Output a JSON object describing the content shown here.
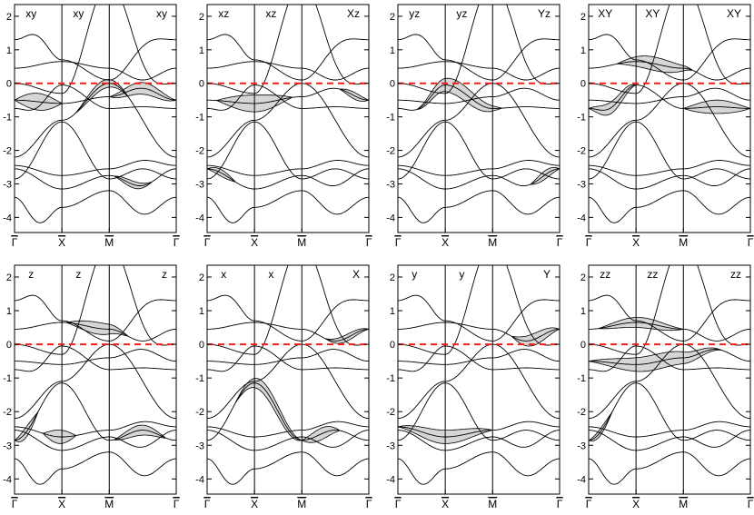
{
  "figure": {
    "y_ticks": [
      -4,
      -3,
      -2,
      -1,
      0,
      1,
      2
    ],
    "y_tick_labels": [
      "-4",
      "-3",
      "-2",
      "-1",
      "0",
      "1",
      "2"
    ],
    "ylim": [
      -4.45,
      2.35
    ],
    "x_ticks": [
      0,
      1,
      2,
      3.414
    ],
    "x_tick_labels": [
      "Γ",
      "X",
      "M",
      "Γ"
    ],
    "fermi_level": 0,
    "fermi_line_color": "#e8231e",
    "fatband_fill": "#d6d6d6",
    "line_color": "#000000"
  },
  "chart_data": [
    {
      "type": "line",
      "panel_labels": [
        "xy",
        "xy",
        "xy"
      ],
      "highlight": [
        {
          "band": 3,
          "x": [
            0,
            1.0
          ],
          "w": 0.5
        },
        {
          "band": 3,
          "x": [
            2.0,
            3.414
          ],
          "w": 0.35
        },
        {
          "band": 5,
          "x": [
            1.3,
            2.4
          ],
          "w": 0.25
        },
        {
          "band": 7,
          "x": [
            2.1,
            2.9
          ],
          "w": 0.2
        }
      ]
    },
    {
      "type": "line",
      "panel_labels": [
        "xz",
        "xz",
        "Xz"
      ],
      "highlight": [
        {
          "band": 3,
          "x": [
            0.2,
            1.8
          ],
          "w": 0.5
        },
        {
          "band": 7,
          "x": [
            0,
            0.6
          ],
          "w": 0.2
        },
        {
          "band": 3,
          "x": [
            2.8,
            3.414
          ],
          "w": 0.2
        }
      ]
    },
    {
      "type": "line",
      "panel_labels": [
        "yz",
        "yz",
        "Yz"
      ],
      "highlight": [
        {
          "band": 4,
          "x": [
            0.4,
            2.2
          ],
          "w": 0.45
        },
        {
          "band": 7,
          "x": [
            2.8,
            3.414
          ],
          "w": 0.25
        }
      ]
    },
    {
      "type": "line",
      "panel_labels": [
        "XY",
        "XY",
        "XY"
      ],
      "highlight": [
        {
          "band": 2,
          "x": [
            0.6,
            2.2
          ],
          "w": 0.4
        },
        {
          "band": 4,
          "x": [
            0,
            1.0
          ],
          "w": 0.35
        },
        {
          "band": 4,
          "x": [
            2.0,
            3.414
          ],
          "w": 0.4
        }
      ]
    },
    {
      "type": "line",
      "panel_labels": [
        "z",
        "z",
        "z"
      ],
      "highlight": [
        {
          "band": 2,
          "x": [
            1.1,
            2.4
          ],
          "w": 0.35
        },
        {
          "band": 6,
          "x": [
            0.6,
            1.3
          ],
          "w": 0.4
        },
        {
          "band": 8,
          "x": [
            0,
            0.5
          ],
          "w": 0.3
        },
        {
          "band": 8,
          "x": [
            2.1,
            3.2
          ],
          "w": 0.3
        }
      ]
    },
    {
      "type": "line",
      "panel_labels": [
        "x",
        "x",
        "X"
      ],
      "highlight": [
        {
          "band": 8,
          "x": [
            0.6,
            2.0
          ],
          "w": 0.35
        },
        {
          "band": 8,
          "x": [
            2.0,
            2.8
          ],
          "w": 0.35
        },
        {
          "band": 2,
          "x": [
            2.5,
            3.414
          ],
          "w": 0.2
        }
      ]
    },
    {
      "type": "line",
      "panel_labels": [
        "y",
        "y",
        "Y"
      ],
      "highlight": [
        {
          "band": 6,
          "x": [
            0,
            2.0
          ],
          "w": 0.4
        },
        {
          "band": 2,
          "x": [
            2.4,
            3.414
          ],
          "w": 0.35
        }
      ]
    },
    {
      "type": "line",
      "panel_labels": [
        "zz",
        "zz",
        "zz"
      ],
      "highlight": [
        {
          "band": 2,
          "x": [
            0.2,
            2.0
          ],
          "w": 0.3
        },
        {
          "band": 3,
          "x": [
            0,
            2.8
          ],
          "w": 0.45
        },
        {
          "band": 8,
          "x": [
            0,
            0.5
          ],
          "w": 0.2
        }
      ]
    }
  ]
}
